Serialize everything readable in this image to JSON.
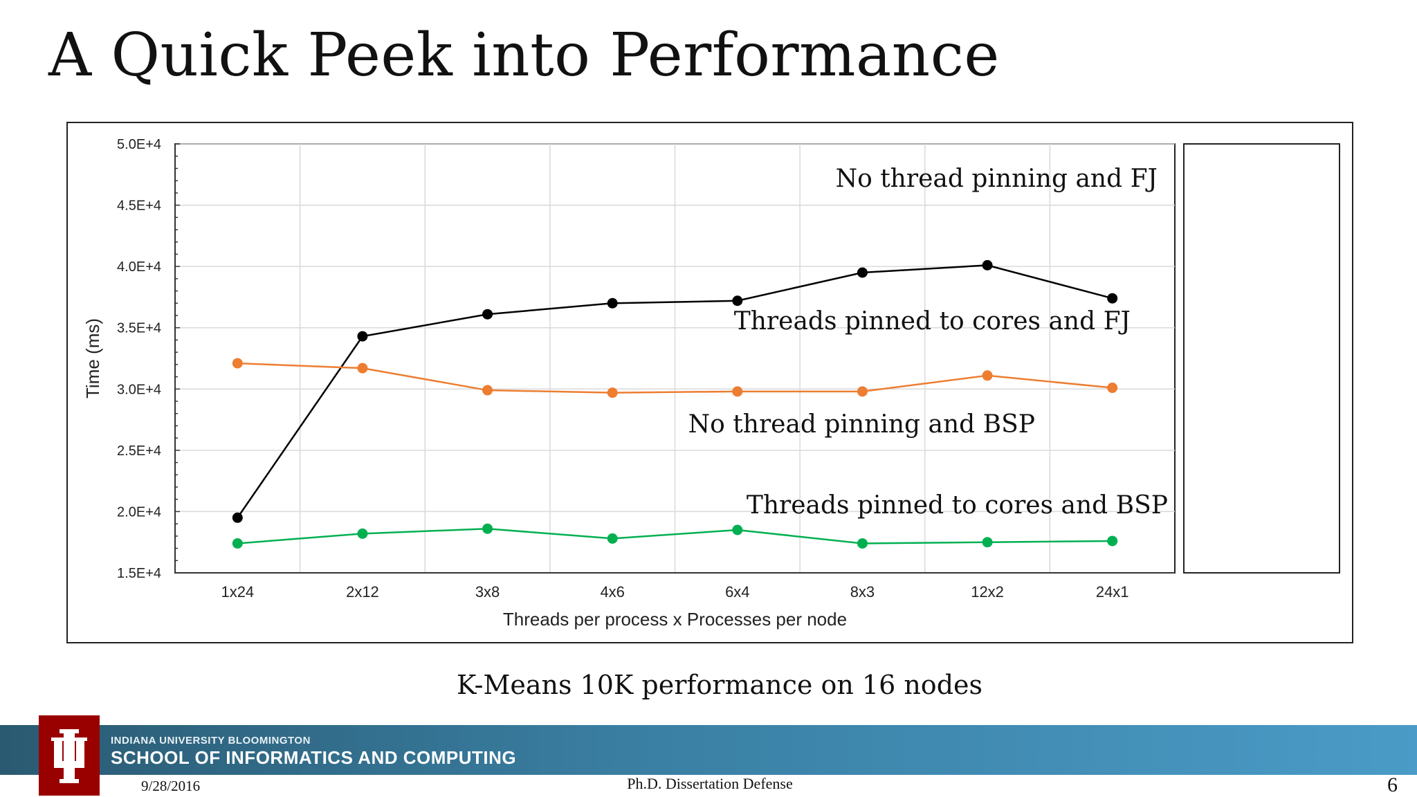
{
  "slide": {
    "title": "A Quick Peek into Performance",
    "caption": "K-Means 10K performance on 16 nodes",
    "footer_date": "9/28/2016",
    "footer_center": "Ph.D. Dissertation Defense",
    "page_number": "6"
  },
  "banner": {
    "subtitle": "INDIANA UNIVERSITY BLOOMINGTON",
    "title": "SCHOOL OF INFORMATICS AND COMPUTING",
    "logo_icon": "iu-trident-icon",
    "colors": {
      "logo_bg": "#990000",
      "banner_left": "#2a5a72",
      "banner_right": "#4a9bc7"
    }
  },
  "chart_data": {
    "type": "line",
    "xlabel": "Threads per process x Processes per node",
    "ylabel": "Time (ms)",
    "ylim": [
      15000,
      50000
    ],
    "yticks": [
      15000,
      20000,
      25000,
      30000,
      35000,
      40000,
      45000,
      50000
    ],
    "ytick_labels": [
      "1.5E+4",
      "2.0E+4",
      "2.5E+4",
      "3.0E+4",
      "3.5E+4",
      "4.0E+4",
      "4.5E+4",
      "5.0E+4"
    ],
    "categories": [
      "1x24",
      "2x12",
      "3x8",
      "4x6",
      "6x4",
      "8x3",
      "12x2",
      "24x1"
    ],
    "grid": true,
    "series": [
      {
        "name": "No thread pinning and FJ",
        "color": "#000000",
        "values": [
          19500,
          34300,
          36100,
          37000,
          37200,
          39500,
          40100,
          37400
        ]
      },
      {
        "name": "No thread pinning and BSP",
        "color": "#ed7d31",
        "values": [
          32100,
          31700,
          29900,
          29700,
          29800,
          29800,
          31100,
          30100
        ]
      },
      {
        "name": "Threads pinned to cores and BSP",
        "color": "#00b050",
        "values": [
          17400,
          18200,
          18600,
          17800,
          18500,
          17400,
          17500,
          17600
        ]
      }
    ],
    "annotations": [
      {
        "text": "No thread pinning and FJ"
      },
      {
        "text": "Threads pinned to cores and FJ"
      },
      {
        "text": "No thread pinning and BSP"
      },
      {
        "text": "Threads pinned to cores and BSP"
      }
    ]
  }
}
